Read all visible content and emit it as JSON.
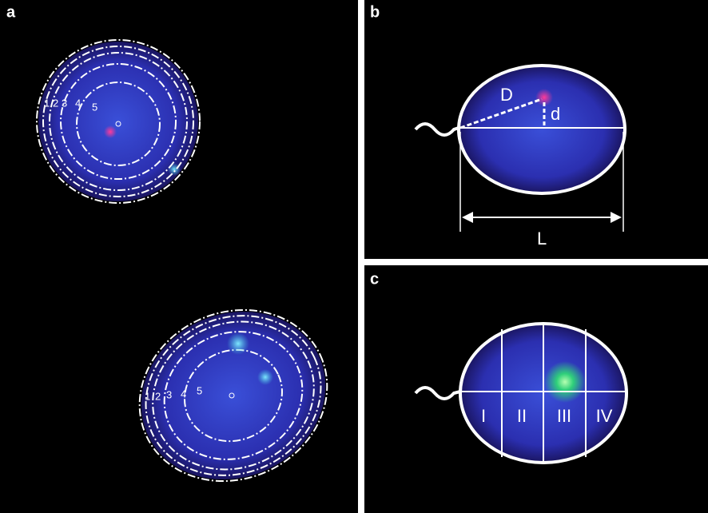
{
  "panels": [
    {
      "label": "a",
      "cells": [
        {
          "ring_labels": [
            "1",
            "2",
            "3",
            "4",
            "5"
          ]
        },
        {
          "ring_labels": [
            "1",
            "2",
            "3",
            "4",
            "5"
          ]
        }
      ]
    },
    {
      "label": "b",
      "annotations": {
        "long_distance": "D",
        "short_distance": "d",
        "length": "L"
      }
    },
    {
      "label": "c",
      "regions": [
        "I",
        "II",
        "III",
        "IV"
      ]
    }
  ]
}
